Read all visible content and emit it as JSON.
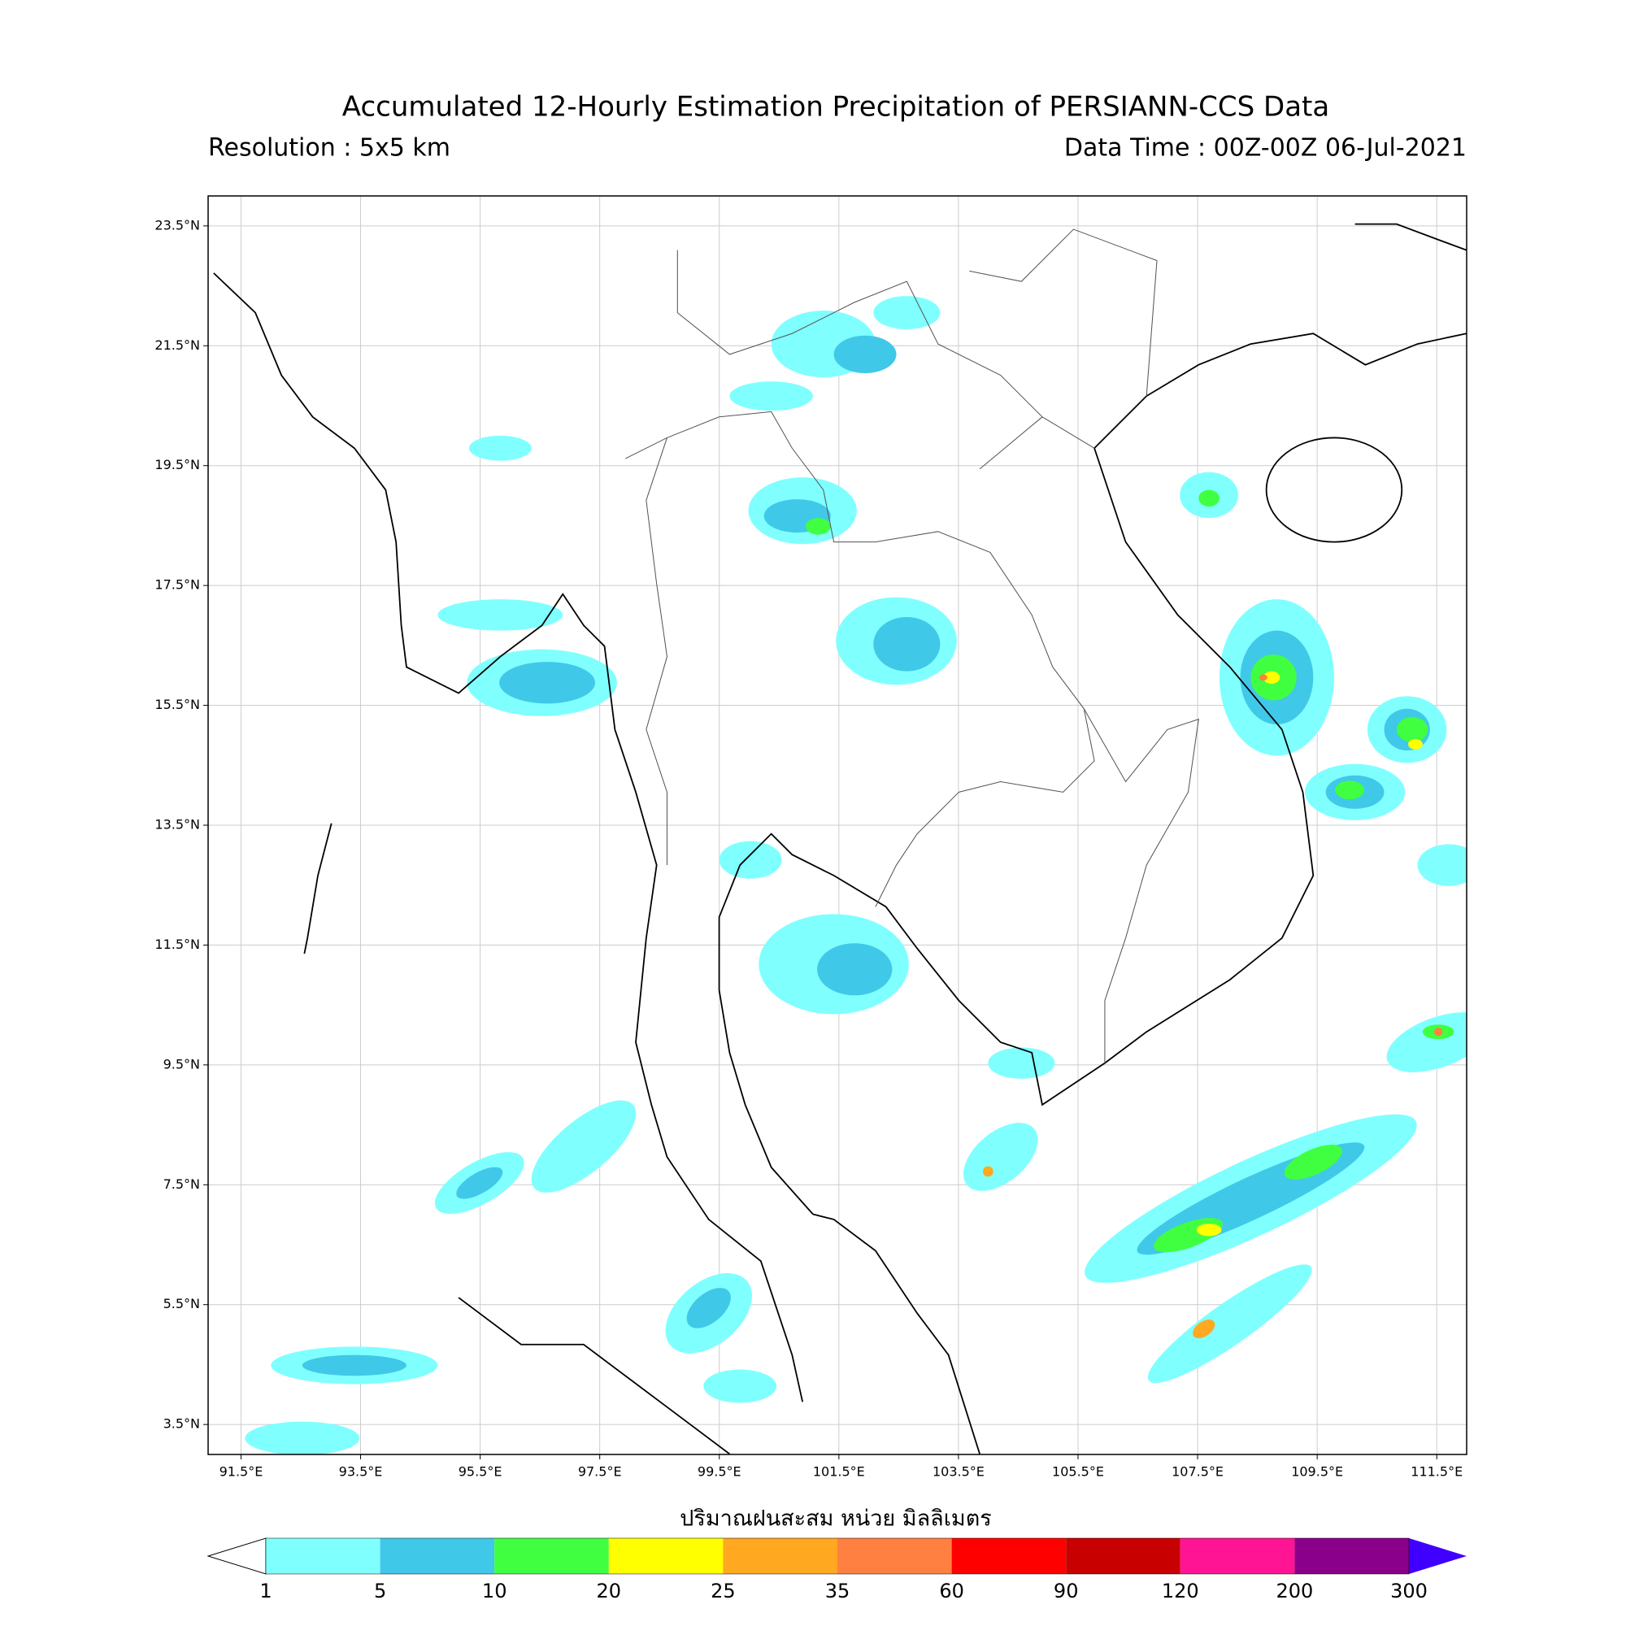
{
  "map": {
    "title": "Accumulated 12-Hourly Estimation Precipitation of PERSIANN-CCS Data",
    "resolution": "Resolution : 5x5 km",
    "data_time": "Data Time : 00Z-00Z 06-Jul-2021",
    "xlim": [
      90.95,
      112
    ],
    "ylim": [
      3,
      24
    ],
    "xticks": [
      {
        "value": 91.5,
        "label": "91.5°E"
      },
      {
        "value": 93.5,
        "label": "93.5°E"
      },
      {
        "value": 95.5,
        "label": "95.5°E"
      },
      {
        "value": 97.5,
        "label": "97.5°E"
      },
      {
        "value": 99.5,
        "label": "99.5°E"
      },
      {
        "value": 101.5,
        "label": "101.5°E"
      },
      {
        "value": 103.5,
        "label": "103.5°E"
      },
      {
        "value": 105.5,
        "label": "105.5°E"
      },
      {
        "value": 107.5,
        "label": "107.5°E"
      },
      {
        "value": 109.5,
        "label": "109.5°E"
      },
      {
        "value": 111.5,
        "label": "111.5°E"
      }
    ],
    "yticks": [
      {
        "value": 3.5,
        "label": "3.5°N"
      },
      {
        "value": 5.5,
        "label": "5.5°N"
      },
      {
        "value": 7.5,
        "label": "7.5°N"
      },
      {
        "value": 9.5,
        "label": "9.5°N"
      },
      {
        "value": 11.5,
        "label": "11.5°N"
      },
      {
        "value": 13.5,
        "label": "13.5°N"
      },
      {
        "value": 15.5,
        "label": "15.5°N"
      },
      {
        "value": 17.5,
        "label": "17.5°N"
      },
      {
        "value": 19.5,
        "label": "19.5°N"
      },
      {
        "value": 21.5,
        "label": "21.5°N"
      },
      {
        "value": 23.5,
        "label": "23.5°N"
      }
    ],
    "grid": true,
    "colorbar": {
      "label": "ปริมาณฝนสะสม หน่วย มิลลิเมตร",
      "levels": [
        1,
        5,
        10,
        20,
        25,
        35,
        60,
        90,
        120,
        200,
        300
      ],
      "colors": [
        "#80ffff",
        "#40c8e8",
        "#40ff40",
        "#ffff00",
        "#ffa820",
        "#ff8040",
        "#ff0000",
        "#c80000",
        "#ff1493",
        "#8b008b"
      ],
      "under_color": "#ffffff",
      "over_color": "#4000ff"
    }
  }
}
